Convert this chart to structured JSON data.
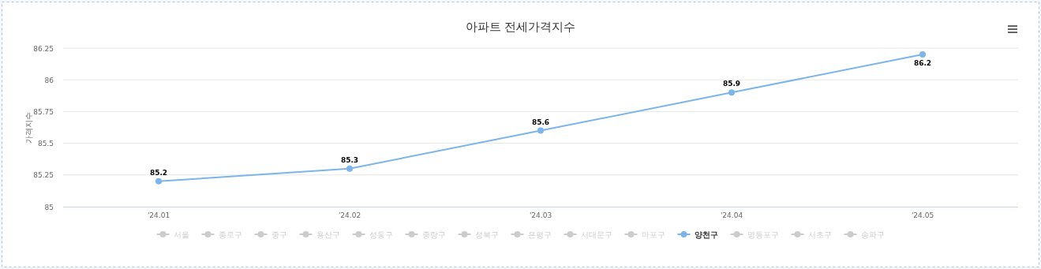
{
  "chart_data": {
    "type": "line",
    "title": "아파트 전세가격지수",
    "ylabel": "가격지수",
    "categories": [
      "'24.01",
      "'24.02",
      "'24.03",
      "'24.04",
      "'24.05"
    ],
    "series": [
      {
        "name": "서울",
        "color": "#cccccc",
        "values": [
          null,
          null,
          null,
          null,
          null
        ]
      },
      {
        "name": "종로구",
        "color": "#cccccc",
        "values": [
          null,
          null,
          null,
          null,
          null
        ]
      },
      {
        "name": "중구",
        "color": "#cccccc",
        "values": [
          null,
          null,
          null,
          null,
          null
        ]
      },
      {
        "name": "용산구",
        "color": "#cccccc",
        "values": [
          null,
          null,
          null,
          null,
          null
        ]
      },
      {
        "name": "성동구",
        "color": "#cccccc",
        "values": [
          null,
          null,
          null,
          null,
          null
        ]
      },
      {
        "name": "중랑구",
        "color": "#cccccc",
        "values": [
          null,
          null,
          null,
          null,
          null
        ]
      },
      {
        "name": "성북구",
        "color": "#cccccc",
        "values": [
          null,
          null,
          null,
          null,
          null
        ]
      },
      {
        "name": "은평구",
        "color": "#cccccc",
        "values": [
          null,
          null,
          null,
          null,
          null
        ]
      },
      {
        "name": "서대문구",
        "color": "#cccccc",
        "values": [
          null,
          null,
          null,
          null,
          null
        ]
      },
      {
        "name": "마포구",
        "color": "#cccccc",
        "values": [
          null,
          null,
          null,
          null,
          null
        ]
      },
      {
        "name": "양천구",
        "color": "#7cb5ec",
        "values": [
          85.2,
          85.3,
          85.6,
          85.9,
          86.2
        ]
      },
      {
        "name": "영등포구",
        "color": "#cccccc",
        "values": [
          null,
          null,
          null,
          null,
          null
        ]
      },
      {
        "name": "서초구",
        "color": "#cccccc",
        "values": [
          null,
          null,
          null,
          null,
          null
        ]
      },
      {
        "name": "송파구",
        "color": "#cccccc",
        "values": [
          null,
          null,
          null,
          null,
          null
        ]
      }
    ],
    "ylim": [
      85,
      86.25
    ],
    "yticks": [
      85,
      85.25,
      85.5,
      85.75,
      86,
      86.25
    ],
    "grid": "y",
    "legend": "bottom",
    "marker": "circle",
    "data_labels": true
  }
}
